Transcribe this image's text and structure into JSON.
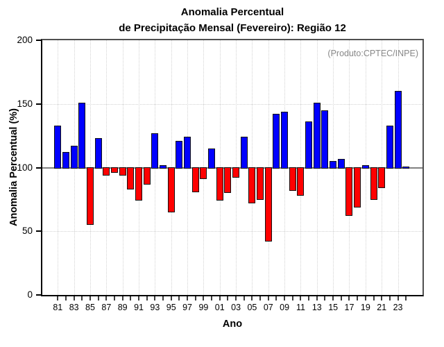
{
  "header": {
    "title_line1": "Anomalia Percentual",
    "title_line2": "de Precipitação Mensal (Fevereiro): Região 12"
  },
  "plot": {
    "note": "(Produto:CPTEC/INPE)",
    "ylabel": "Anomalia Percentual (%)",
    "xlabel": "Ano"
  },
  "colors": {
    "positive_bar": "#0000ff",
    "negative_bar": "#ff0000",
    "bar_outline": "#101010",
    "baseline": "#808080",
    "grid": "#d2d2d2",
    "note_text": "#878787",
    "axis": "#000000"
  },
  "chart_data": {
    "type": "bar",
    "title": "Anomalia Percentual de Precipitação Mensal (Fevereiro): Região 12",
    "xlabel": "Ano",
    "ylabel": "Anomalia Percentual (%)",
    "ylim": [
      0,
      200
    ],
    "yticks": [
      0,
      50,
      100,
      150,
      200
    ],
    "ygrid": [
      50,
      150
    ],
    "grid": "dotted",
    "baseline": 100,
    "label_every": 2,
    "legend": "none",
    "annotation": "(Produto:CPTEC/INPE)",
    "categories": [
      "81",
      "82",
      "83",
      "84",
      "85",
      "86",
      "87",
      "88",
      "89",
      "90",
      "91",
      "92",
      "93",
      "94",
      "95",
      "96",
      "97",
      "98",
      "99",
      "00",
      "01",
      "02",
      "03",
      "04",
      "05",
      "06",
      "07",
      "08",
      "09",
      "10",
      "11",
      "12",
      "13",
      "14",
      "15",
      "16",
      "17",
      "18",
      "19",
      "20",
      "21",
      "22",
      "23",
      "24"
    ],
    "values": [
      133,
      112,
      117,
      151,
      56,
      123,
      95,
      97,
      95,
      84,
      75,
      88,
      127,
      102,
      66,
      121,
      124,
      82,
      92,
      115,
      75,
      81,
      93,
      124,
      73,
      76,
      43,
      142,
      144,
      83,
      79,
      136,
      151,
      145,
      105,
      107,
      63,
      70,
      102,
      76,
      85,
      133,
      160,
      101
    ],
    "positive_color": "#0000ff",
    "negative_color": "#ff0000"
  }
}
